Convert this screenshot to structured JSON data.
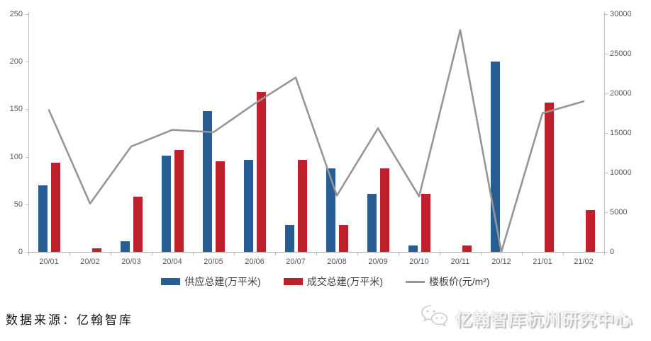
{
  "chart_data": {
    "type": "combo-bar-line",
    "title": "",
    "categories": [
      "20/01",
      "20/02",
      "20/03",
      "20/04",
      "20/05",
      "20/06",
      "20/07",
      "20/08",
      "20/09",
      "20/10",
      "20/11",
      "20/12",
      "21/01",
      "21/02"
    ],
    "bar_series": [
      {
        "name": "供应总建(万平米)",
        "color": "#275D92",
        "axis": "left",
        "values": [
          70,
          0,
          11,
          101,
          148,
          97,
          28,
          88,
          61,
          7,
          0,
          200,
          0,
          0
        ]
      },
      {
        "name": "成交总建(万平米)",
        "color": "#BE202C",
        "axis": "left",
        "values": [
          94,
          4,
          58,
          107,
          95,
          168,
          97,
          28,
          88,
          61,
          7,
          0,
          157,
          44
        ]
      }
    ],
    "line_series": [
      {
        "name": "楼板价(元/m²)",
        "color": "#969696",
        "axis": "right",
        "values": [
          17900,
          6100,
          13300,
          15400,
          15100,
          18700,
          22000,
          7100,
          15600,
          7000,
          28000,
          0,
          17500,
          19000
        ]
      }
    ],
    "left_axis": {
      "min": 0,
      "max": 250,
      "step": 50,
      "ticks": [
        "0",
        "50",
        "100",
        "150",
        "200",
        "250"
      ]
    },
    "right_axis": {
      "min": 0,
      "max": 30000,
      "step": 5000,
      "ticks": [
        "0",
        "5000",
        "10000",
        "15000",
        "20000",
        "25000",
        "30000"
      ]
    },
    "grid": false,
    "legend_position": "bottom",
    "xlabel": "",
    "ylabel_left": "",
    "ylabel_right": ""
  },
  "footer": {
    "source_text": "数据来源：亿翰智库"
  },
  "watermark": {
    "icon": "wechat-icon",
    "text": "亿翰智库杭州研究中心"
  },
  "colors": {
    "supply_bar": "#275D92",
    "transaction_bar": "#BE202C",
    "price_line": "#969696",
    "axis_text": "#595959",
    "axis_line": "#BFBFBF"
  }
}
